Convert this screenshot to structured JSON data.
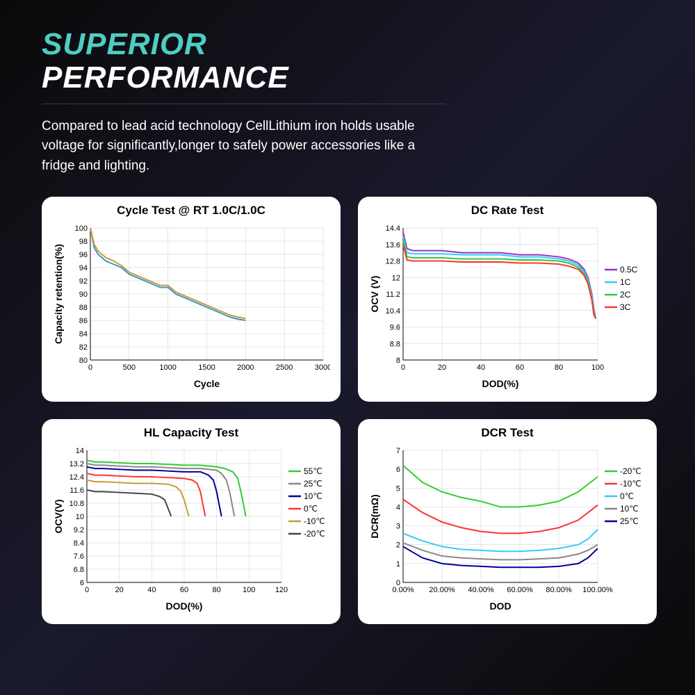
{
  "header": {
    "title_line1": "SUPERIOR",
    "title_line2": "PERFORMANCE",
    "subtitle": "Compared to lead acid technology CellLithium iron holds usable voltage for significantly,longer to safely power accessories like a fridge and lighting."
  },
  "colors": {
    "accent": "#4ecdc4",
    "bg_dark": "#0a0a0a",
    "card_bg": "#ffffff",
    "grid": "#cccccc",
    "axis": "#000000"
  },
  "chart1": {
    "type": "line",
    "title": "Cycle Test @ RT 1.0C/1.0C",
    "xlabel": "Cycle",
    "ylabel": "Capacity retention(%)",
    "xlim": [
      0,
      3000
    ],
    "ylim": [
      80,
      100
    ],
    "xticks": [
      0,
      500,
      1000,
      1500,
      2000,
      2500,
      3000
    ],
    "yticks": [
      80,
      82,
      84,
      86,
      88,
      90,
      92,
      94,
      96,
      98,
      100
    ],
    "series": [
      {
        "color": "#3399cc",
        "data": [
          [
            0,
            100
          ],
          [
            50,
            97
          ],
          [
            100,
            96
          ],
          [
            200,
            95
          ],
          [
            300,
            94.5
          ],
          [
            400,
            94
          ],
          [
            500,
            93
          ],
          [
            600,
            92.5
          ],
          [
            700,
            92
          ],
          [
            800,
            91.5
          ],
          [
            900,
            91
          ],
          [
            1000,
            91
          ],
          [
            1100,
            90
          ],
          [
            1200,
            89.5
          ],
          [
            1300,
            89
          ],
          [
            1400,
            88.5
          ],
          [
            1500,
            88
          ],
          [
            1600,
            87.5
          ],
          [
            1700,
            87
          ],
          [
            1800,
            86.5
          ],
          [
            1900,
            86.2
          ],
          [
            2000,
            86
          ]
        ]
      },
      {
        "color": "#cc9933",
        "data": [
          [
            0,
            100
          ],
          [
            50,
            97.5
          ],
          [
            100,
            96.5
          ],
          [
            200,
            95.5
          ],
          [
            300,
            95
          ],
          [
            400,
            94.3
          ],
          [
            500,
            93.3
          ],
          [
            600,
            92.8
          ],
          [
            700,
            92.3
          ],
          [
            800,
            91.8
          ],
          [
            900,
            91.3
          ],
          [
            1000,
            91.3
          ],
          [
            1100,
            90.3
          ],
          [
            1200,
            89.8
          ],
          [
            1300,
            89.3
          ],
          [
            1400,
            88.8
          ],
          [
            1500,
            88.3
          ],
          [
            1600,
            87.8
          ],
          [
            1700,
            87.3
          ],
          [
            1800,
            86.8
          ],
          [
            1900,
            86.5
          ],
          [
            2000,
            86.3
          ]
        ]
      }
    ]
  },
  "chart2": {
    "type": "line",
    "title": "DC Rate Test",
    "xlabel": "DOD(%)",
    "ylabel": "OCV (V)",
    "xlim": [
      0,
      100
    ],
    "ylim": [
      8,
      14.4
    ],
    "xticks": [
      0,
      20,
      40,
      60,
      80,
      100
    ],
    "yticks": [
      8,
      8.8,
      9.6,
      10.4,
      11.2,
      12,
      12.8,
      13.6,
      14.4
    ],
    "legend": [
      {
        "label": "0.5C",
        "color": "#9933cc"
      },
      {
        "label": "1C",
        "color": "#33ccff"
      },
      {
        "label": "2C",
        "color": "#33cc33"
      },
      {
        "label": "3C",
        "color": "#ff3333"
      }
    ],
    "series": [
      {
        "color": "#9933cc",
        "data": [
          [
            0,
            14.2
          ],
          [
            2,
            13.4
          ],
          [
            5,
            13.3
          ],
          [
            10,
            13.3
          ],
          [
            20,
            13.3
          ],
          [
            30,
            13.2
          ],
          [
            40,
            13.2
          ],
          [
            50,
            13.2
          ],
          [
            60,
            13.1
          ],
          [
            70,
            13.1
          ],
          [
            80,
            13.0
          ],
          [
            85,
            12.9
          ],
          [
            90,
            12.7
          ],
          [
            93,
            12.4
          ],
          [
            95,
            12.0
          ],
          [
            97,
            11.2
          ],
          [
            98,
            10.5
          ],
          [
            99,
            10.0
          ]
        ]
      },
      {
        "color": "#33ccff",
        "data": [
          [
            0,
            14.0
          ],
          [
            2,
            13.2
          ],
          [
            5,
            13.15
          ],
          [
            10,
            13.15
          ],
          [
            20,
            13.15
          ],
          [
            30,
            13.1
          ],
          [
            40,
            13.1
          ],
          [
            50,
            13.1
          ],
          [
            60,
            13.0
          ],
          [
            70,
            13.0
          ],
          [
            80,
            12.9
          ],
          [
            85,
            12.8
          ],
          [
            90,
            12.6
          ],
          [
            93,
            12.3
          ],
          [
            95,
            11.9
          ],
          [
            97,
            11.1
          ],
          [
            98,
            10.4
          ],
          [
            99,
            10.0
          ]
        ]
      },
      {
        "color": "#33cc33",
        "data": [
          [
            0,
            13.8
          ],
          [
            2,
            13.0
          ],
          [
            5,
            12.95
          ],
          [
            10,
            12.95
          ],
          [
            20,
            12.95
          ],
          [
            30,
            12.9
          ],
          [
            40,
            12.9
          ],
          [
            50,
            12.9
          ],
          [
            60,
            12.85
          ],
          [
            70,
            12.85
          ],
          [
            80,
            12.8
          ],
          [
            85,
            12.7
          ],
          [
            90,
            12.5
          ],
          [
            93,
            12.2
          ],
          [
            95,
            11.8
          ],
          [
            97,
            11.0
          ],
          [
            98,
            10.3
          ],
          [
            99,
            10.0
          ]
        ]
      },
      {
        "color": "#ff3333",
        "data": [
          [
            0,
            13.6
          ],
          [
            2,
            12.85
          ],
          [
            5,
            12.8
          ],
          [
            10,
            12.8
          ],
          [
            20,
            12.8
          ],
          [
            30,
            12.75
          ],
          [
            40,
            12.75
          ],
          [
            50,
            12.75
          ],
          [
            60,
            12.7
          ],
          [
            70,
            12.7
          ],
          [
            80,
            12.65
          ],
          [
            85,
            12.55
          ],
          [
            90,
            12.4
          ],
          [
            93,
            12.1
          ],
          [
            95,
            11.7
          ],
          [
            97,
            10.9
          ],
          [
            98,
            10.2
          ],
          [
            99,
            10.0
          ]
        ]
      }
    ]
  },
  "chart3": {
    "type": "line",
    "title": "HL Capacity Test",
    "xlabel": "DOD(%)",
    "ylabel": "OCV(V)",
    "xlim": [
      0,
      120
    ],
    "ylim": [
      6,
      14
    ],
    "xticks": [
      0,
      20,
      40,
      60,
      80,
      100,
      120
    ],
    "yticks": [
      6,
      6.8,
      7.6,
      8.4,
      9.2,
      10,
      10.8,
      11.6,
      12.4,
      13.2,
      14
    ],
    "legend": [
      {
        "label": "55℃",
        "color": "#33cc33"
      },
      {
        "label": "25℃",
        "color": "#888888"
      },
      {
        "label": "10℃",
        "color": "#000099"
      },
      {
        "label": "0℃",
        "color": "#ff3333"
      },
      {
        "label": "-10℃",
        "color": "#cc9933"
      },
      {
        "label": "-20℃",
        "color": "#444444"
      }
    ],
    "series": [
      {
        "color": "#33cc33",
        "data": [
          [
            0,
            13.4
          ],
          [
            5,
            13.3
          ],
          [
            10,
            13.3
          ],
          [
            20,
            13.25
          ],
          [
            30,
            13.2
          ],
          [
            40,
            13.2
          ],
          [
            50,
            13.15
          ],
          [
            60,
            13.1
          ],
          [
            70,
            13.1
          ],
          [
            80,
            13.0
          ],
          [
            85,
            12.9
          ],
          [
            90,
            12.7
          ],
          [
            93,
            12.3
          ],
          [
            95,
            11.5
          ],
          [
            97,
            10.5
          ],
          [
            98,
            10.0
          ]
        ]
      },
      {
        "color": "#888888",
        "data": [
          [
            0,
            13.2
          ],
          [
            5,
            13.1
          ],
          [
            10,
            13.1
          ],
          [
            20,
            13.05
          ],
          [
            30,
            13.0
          ],
          [
            40,
            13.0
          ],
          [
            50,
            12.95
          ],
          [
            60,
            12.9
          ],
          [
            70,
            12.9
          ],
          [
            80,
            12.8
          ],
          [
            83,
            12.6
          ],
          [
            86,
            12.2
          ],
          [
            88,
            11.5
          ],
          [
            90,
            10.5
          ],
          [
            91,
            10.0
          ]
        ]
      },
      {
        "color": "#000099",
        "data": [
          [
            0,
            13.0
          ],
          [
            5,
            12.9
          ],
          [
            10,
            12.9
          ],
          [
            20,
            12.85
          ],
          [
            30,
            12.8
          ],
          [
            40,
            12.8
          ],
          [
            50,
            12.75
          ],
          [
            60,
            12.7
          ],
          [
            70,
            12.7
          ],
          [
            75,
            12.5
          ],
          [
            78,
            12.2
          ],
          [
            80,
            11.5
          ],
          [
            82,
            10.5
          ],
          [
            83,
            10.0
          ]
        ]
      },
      {
        "color": "#ff3333",
        "data": [
          [
            0,
            12.6
          ],
          [
            5,
            12.5
          ],
          [
            10,
            12.5
          ],
          [
            20,
            12.45
          ],
          [
            30,
            12.4
          ],
          [
            40,
            12.4
          ],
          [
            50,
            12.35
          ],
          [
            60,
            12.3
          ],
          [
            65,
            12.2
          ],
          [
            68,
            12.0
          ],
          [
            70,
            11.5
          ],
          [
            72,
            10.5
          ],
          [
            73,
            10.0
          ]
        ]
      },
      {
        "color": "#cc9933",
        "data": [
          [
            0,
            12.2
          ],
          [
            5,
            12.1
          ],
          [
            10,
            12.1
          ],
          [
            20,
            12.05
          ],
          [
            30,
            12.0
          ],
          [
            40,
            12.0
          ],
          [
            50,
            11.95
          ],
          [
            55,
            11.8
          ],
          [
            58,
            11.5
          ],
          [
            60,
            11.0
          ],
          [
            62,
            10.3
          ],
          [
            63,
            10.0
          ]
        ]
      },
      {
        "color": "#444444",
        "data": [
          [
            0,
            11.6
          ],
          [
            5,
            11.5
          ],
          [
            10,
            11.5
          ],
          [
            20,
            11.45
          ],
          [
            30,
            11.4
          ],
          [
            40,
            11.35
          ],
          [
            45,
            11.2
          ],
          [
            48,
            11.0
          ],
          [
            50,
            10.5
          ],
          [
            52,
            10.0
          ]
        ]
      }
    ]
  },
  "chart4": {
    "type": "line",
    "title": "DCR Test",
    "xlabel": "DOD",
    "ylabel": "DCR(mΩ)",
    "xlim": [
      0,
      100
    ],
    "ylim": [
      0,
      7
    ],
    "xticks_labels": [
      "0.00%",
      "20.00%",
      "40.00%",
      "60.00%",
      "80.00%",
      "100.00%"
    ],
    "xticks": [
      0,
      20,
      40,
      60,
      80,
      100
    ],
    "yticks": [
      0,
      1,
      2,
      3,
      4,
      5,
      6,
      7
    ],
    "legend": [
      {
        "label": "-20℃",
        "color": "#33cc33"
      },
      {
        "label": "-10℃",
        "color": "#ff3333"
      },
      {
        "label": "0℃",
        "color": "#33ccff"
      },
      {
        "label": "10℃",
        "color": "#888888"
      },
      {
        "label": "25℃",
        "color": "#000099"
      }
    ],
    "series": [
      {
        "color": "#33cc33",
        "data": [
          [
            0,
            6.2
          ],
          [
            10,
            5.3
          ],
          [
            20,
            4.8
          ],
          [
            30,
            4.5
          ],
          [
            40,
            4.3
          ],
          [
            50,
            4.0
          ],
          [
            60,
            4.0
          ],
          [
            70,
            4.1
          ],
          [
            80,
            4.3
          ],
          [
            90,
            4.8
          ],
          [
            95,
            5.2
          ],
          [
            100,
            5.6
          ]
        ]
      },
      {
        "color": "#ff3333",
        "data": [
          [
            0,
            4.4
          ],
          [
            10,
            3.7
          ],
          [
            20,
            3.2
          ],
          [
            30,
            2.9
          ],
          [
            40,
            2.7
          ],
          [
            50,
            2.6
          ],
          [
            60,
            2.6
          ],
          [
            70,
            2.7
          ],
          [
            80,
            2.9
          ],
          [
            90,
            3.3
          ],
          [
            95,
            3.7
          ],
          [
            100,
            4.1
          ]
        ]
      },
      {
        "color": "#33ccff",
        "data": [
          [
            0,
            2.6
          ],
          [
            10,
            2.2
          ],
          [
            20,
            1.9
          ],
          [
            30,
            1.75
          ],
          [
            40,
            1.7
          ],
          [
            50,
            1.65
          ],
          [
            60,
            1.65
          ],
          [
            70,
            1.7
          ],
          [
            80,
            1.8
          ],
          [
            90,
            2.0
          ],
          [
            95,
            2.3
          ],
          [
            100,
            2.8
          ]
        ]
      },
      {
        "color": "#888888",
        "data": [
          [
            0,
            2.1
          ],
          [
            10,
            1.7
          ],
          [
            20,
            1.4
          ],
          [
            30,
            1.3
          ],
          [
            40,
            1.25
          ],
          [
            50,
            1.2
          ],
          [
            60,
            1.2
          ],
          [
            70,
            1.25
          ],
          [
            80,
            1.3
          ],
          [
            90,
            1.5
          ],
          [
            95,
            1.7
          ],
          [
            100,
            2.0
          ]
        ]
      },
      {
        "color": "#000099",
        "data": [
          [
            0,
            1.9
          ],
          [
            10,
            1.3
          ],
          [
            20,
            1.0
          ],
          [
            30,
            0.9
          ],
          [
            40,
            0.85
          ],
          [
            50,
            0.8
          ],
          [
            60,
            0.8
          ],
          [
            70,
            0.8
          ],
          [
            80,
            0.85
          ],
          [
            90,
            1.0
          ],
          [
            95,
            1.3
          ],
          [
            100,
            1.8
          ]
        ]
      }
    ]
  }
}
